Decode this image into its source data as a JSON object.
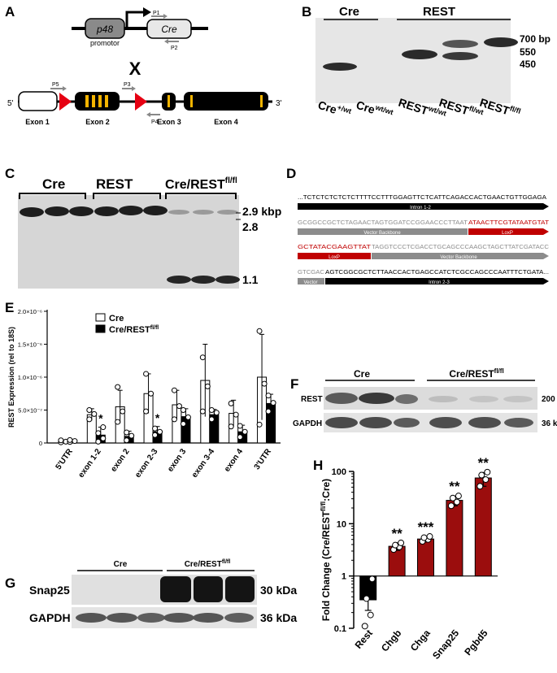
{
  "panels": {
    "a": "A",
    "b": "B",
    "c": "C",
    "d": "D",
    "e": "E",
    "f": "F",
    "g": "G",
    "h": "H"
  },
  "panel_a": {
    "promoter": "p48",
    "promoter_caption": "promotor",
    "gene": "Cre",
    "primers": [
      "P1",
      "P2",
      "P3",
      "P4",
      "P5"
    ],
    "cross": "X",
    "end5": "5'",
    "end3": "3'",
    "exons": [
      "Exon 1",
      "Exon 2",
      "Exon 3",
      "Exon 4"
    ]
  },
  "panel_b": {
    "groups": [
      "Cre",
      "REST"
    ],
    "sizes": [
      "700 bp",
      "550",
      "450"
    ],
    "lanes": [
      {
        "base": "Cre",
        "sup": "+/wt"
      },
      {
        "base": "Cre",
        "sup": "wt/wt"
      },
      {
        "base": "REST",
        "sup": "wt/wt"
      },
      {
        "base": "REST",
        "sup": "fl/wt"
      },
      {
        "base": "REST",
        "sup": "fl/fl"
      }
    ]
  },
  "panel_c": {
    "groups": [
      "Cre",
      "REST",
      "Cre/REST"
    ],
    "group3_sup": "fl/fl",
    "sizes": [
      "2.9 kbp",
      "2.8",
      "1.1"
    ]
  },
  "panel_d": {
    "line1": "...TCTCTCTCTCTCTTTTCCTTTGGAGTTCTCATTCAGACCACTGAACTGTTGGAGA",
    "line1_bar": "Intron 1-2",
    "line2_gray": "GCGGCCGCTCTAGAACTAGTGGATCCGGAACCCTTAAT",
    "line2_red": "ATAACTTCGTATAATGTAT",
    "line2_bar_a": "Vector Backbone",
    "line2_bar_b": "LoxP",
    "line3_red": "GCTATACGAAGTTAT",
    "line3_gray": "TAGGTCCCTCGACCTGCAGCCCAAGCTAGCTTATCGATACC",
    "line3_bar_a": "LoxP",
    "line3_bar_b": "Vector Backbone",
    "line4_gray": "GTCGAC",
    "line4_black": "AGTCGGCGCTCTTAACCACTGAGCCATCTCGCCAGCCCAATTTCTGATA...",
    "line4_bar_a": "Vector",
    "line4_bar_b": "Intron 2-3"
  },
  "panel_f": {
    "groups": [
      "Cre",
      "Cre/REST"
    ],
    "group2_sup": "fl/fl",
    "rows": [
      "REST",
      "GAPDH"
    ],
    "sizes": [
      "200 kDa",
      "36 kDa"
    ]
  },
  "panel_g": {
    "groups": [
      "Cre",
      "Cre/REST"
    ],
    "group2_sup": "fl/fl",
    "rows": [
      "Snap25",
      "GAPDH"
    ],
    "sizes": [
      "30 kDa",
      "36 kDa"
    ]
  },
  "chart_data": [
    {
      "panel": "E",
      "type": "bar",
      "ylabel": "REST Expression (rel to 18S)",
      "ylim": [
        0,
        2e-06
      ],
      "yticks": [
        "0",
        "5.0×10⁻⁷",
        "1.0×10⁻⁶",
        "1.5×10⁻⁶",
        "2.0×10⁻⁶"
      ],
      "ytick_values": [
        0,
        5e-07,
        1e-06,
        1.5e-06,
        2e-06
      ],
      "categories": [
        "5'UTR",
        "exon 1-2",
        "exon 2",
        "exon 2-3",
        "exon 3",
        "exon 3-4",
        "exon 4",
        "3'UTR"
      ],
      "legend": [
        "Cre",
        "Cre/REST"
      ],
      "legend_sup": "fl/fl",
      "legend_position": "top-left",
      "colors": {
        "cre": "#ffffff",
        "rest": "#000000"
      },
      "series": [
        {
          "name": "Cre",
          "values": [
            2e-08,
            4.3e-07,
            5.5e-07,
            7.5e-07,
            5.8e-07,
            9.5e-07,
            4.5e-07,
            1e-06
          ],
          "errors": [
            1e-08,
            9e-08,
            2.5e-07,
            3e-07,
            2.2e-07,
            5.5e-07,
            2e-07,
            6.5e-07
          ]
        },
        {
          "name": "Cre/REST",
          "values": [
            3e-08,
            1.2e-07,
            1e-07,
            1.7e-07,
            4e-07,
            4.3e-07,
            1.7e-07,
            6e-07
          ],
          "errors": [
            1.5e-08,
            1.2e-07,
            8e-08,
            8e-08,
            1.2e-07,
            8e-08,
            1e-07,
            1.4e-07
          ]
        }
      ],
      "points": [
        [
          [
            1e-08,
            2e-08,
            4e-08
          ],
          [
            3.6e-07,
            4.4e-07,
            5e-07
          ],
          [
            3.2e-07,
            4.8e-07,
            8.5e-07
          ],
          [
            4.8e-07,
            7.5e-07,
            1.05e-06
          ],
          [
            3.6e-07,
            5.6e-07,
            8e-07
          ],
          [
            4.8e-07,
            8.6e-07,
            1.3e-06
          ],
          [
            2.5e-07,
            4.3e-07,
            6e-07
          ],
          [
            2.8e-07,
            9e-07,
            1.7e-06
          ]
        ],
        [
          [
            1.5e-08,
            3e-08,
            4.5e-08
          ],
          [
            2e-08,
            7e-08,
            1.5e-07,
            2.4e-07
          ],
          [
            4e-08,
            1.1e-07,
            1.6e-07
          ],
          [
            1.2e-07,
            1.7e-07,
            2.2e-07
          ],
          [
            2.9e-07,
            3.9e-07,
            5e-07
          ],
          [
            3.6e-07,
            4.6e-07,
            5e-07
          ],
          [
            9e-08,
            1.7e-07,
            2.6e-07
          ],
          [
            4.8e-07,
            6.1e-07,
            7.2e-07
          ]
        ]
      ],
      "annotations": [
        {
          "category": "exon 1-2",
          "text": "*"
        },
        {
          "category": "exon 2-3",
          "text": "*"
        }
      ]
    },
    {
      "panel": "H",
      "type": "bar",
      "scale": "log",
      "ylabel": "Fold Change (Cre/REST",
      "ylabel_sup": "fl/fl",
      "ylabel_tail": ":Cre)",
      "ylim": [
        0.1,
        100
      ],
      "yticks": [
        "0.1",
        "1",
        "10",
        "100"
      ],
      "ytick_values": [
        0.1,
        1,
        10,
        100
      ],
      "categories": [
        "Rest",
        "Chgb",
        "Chga",
        "Snap25",
        "Pgbd5"
      ],
      "colors": {
        "rest": "#000000",
        "bar": "#9b0d0d"
      },
      "values": [
        0.35,
        3.7,
        5.1,
        28,
        75
      ],
      "errors_low": [
        0.22,
        3.1,
        4.5,
        22,
        52
      ],
      "errors_high": [
        0.9,
        4.3,
        5.7,
        33,
        95
      ],
      "points": [
        [
          0.11,
          0.18,
          0.37,
          0.88
        ],
        [
          3.2,
          3.6,
          3.9,
          4.3
        ],
        [
          4.6,
          5.0,
          5.4,
          5.7
        ],
        [
          22,
          26,
          31,
          34
        ],
        [
          52,
          70,
          85,
          97
        ]
      ],
      "annotations": [
        "",
        "**",
        "***",
        "**",
        "**"
      ]
    }
  ]
}
